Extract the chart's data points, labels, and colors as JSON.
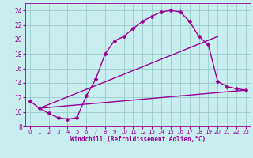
{
  "xlabel": "Windchill (Refroidissement éolien,°C)",
  "bg_color": "#c8eef0",
  "line_color": "#990099",
  "grid_color": "#99cccc",
  "line1_x": [
    0,
    1,
    2,
    3,
    4,
    5,
    6,
    7,
    8,
    9,
    10,
    11,
    12,
    13,
    14,
    15,
    16,
    17,
    18,
    19,
    20,
    21,
    22,
    23
  ],
  "line1_y": [
    11.5,
    10.5,
    9.8,
    9.2,
    9.0,
    9.2,
    12.2,
    14.5,
    18.0,
    19.8,
    20.4,
    21.5,
    22.5,
    23.2,
    23.8,
    24.0,
    23.8,
    22.5,
    20.4,
    19.3,
    14.2,
    13.5,
    13.2,
    13.0
  ],
  "line2_x": [
    1,
    20
  ],
  "line2_y": [
    10.5,
    20.4
  ],
  "line3_x": [
    1,
    23
  ],
  "line3_y": [
    10.5,
    13.0
  ],
  "xlim": [
    -0.5,
    23.5
  ],
  "ylim": [
    8,
    25
  ],
  "xticks": [
    0,
    1,
    2,
    3,
    4,
    5,
    6,
    7,
    8,
    9,
    10,
    11,
    12,
    13,
    14,
    15,
    16,
    17,
    18,
    19,
    20,
    21,
    22,
    23
  ],
  "yticks": [
    8,
    10,
    12,
    14,
    16,
    18,
    20,
    22,
    24
  ],
  "marker": "D",
  "markersize": 2.5,
  "linewidth": 1.0,
  "fontsize_tick": 5.0,
  "fontsize_xlabel": 5.5
}
